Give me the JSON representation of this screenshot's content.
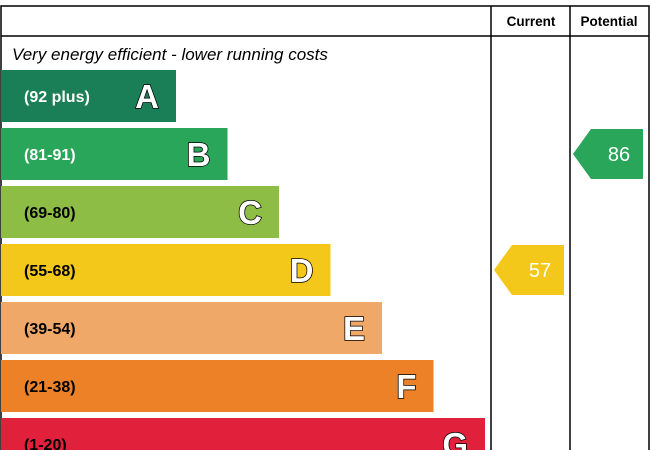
{
  "chart_data": {
    "type": "bar",
    "header": {
      "current": "Current",
      "potential": "Potential"
    },
    "top_description": "Very energy efficient - lower running costs",
    "bands": [
      {
        "letter": "A",
        "range": "(92 plus)",
        "color": "#1a7f56",
        "text_dark": false
      },
      {
        "letter": "B",
        "range": "(81-91)",
        "color": "#2aa65a",
        "text_dark": false
      },
      {
        "letter": "C",
        "range": "(69-80)",
        "color": "#8dbd45",
        "text_dark": true
      },
      {
        "letter": "D",
        "range": "(55-68)",
        "color": "#f3c81a",
        "text_dark": true
      },
      {
        "letter": "E",
        "range": "(39-54)",
        "color": "#f0a868",
        "text_dark": true
      },
      {
        "letter": "F",
        "range": "(21-38)",
        "color": "#ec8128",
        "text_dark": true
      },
      {
        "letter": "G",
        "range": "(1-20)",
        "color": "#e1213c",
        "text_dark": true
      }
    ],
    "current": {
      "value": "57",
      "band": "D",
      "color": "#f3c81a"
    },
    "potential": {
      "value": "86",
      "band": "B",
      "color": "#2aa65a"
    }
  }
}
